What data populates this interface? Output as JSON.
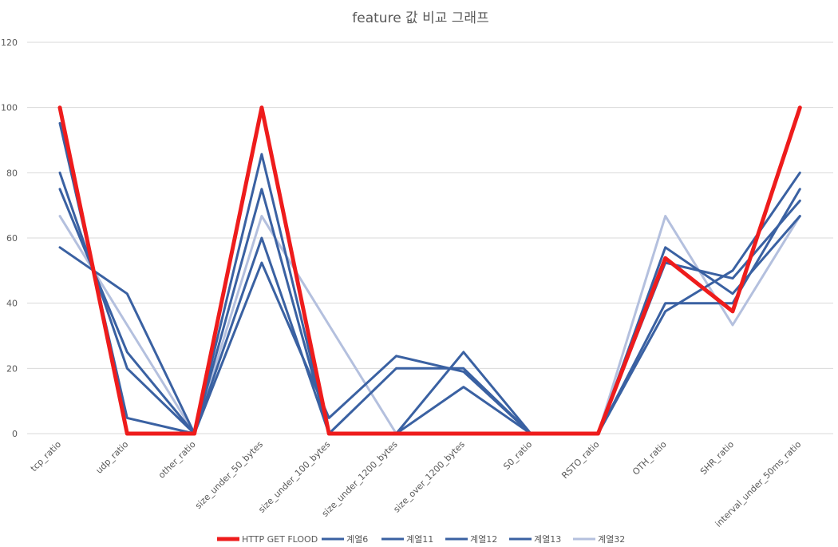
{
  "chart_data": {
    "type": "line",
    "title": "feature 값 비교 그래프",
    "xlabel": "",
    "ylabel": "",
    "ylim": [
      0,
      120
    ],
    "yticks": [
      "0",
      "20",
      "40",
      "60",
      "80",
      "100",
      "120"
    ],
    "grid": true,
    "legend_position": "bottom",
    "categories": [
      "tcp_ratio",
      "udp_ratio",
      "other_ratio",
      "size_under_50_bytes",
      "size_under_100_bytes",
      "size_under_1200_bytes",
      "size_over_1200_bytes",
      "S0_ratio",
      "RSTO_ratio",
      "OTH_ratio",
      "SHR_ratio",
      "interval_under_50ms_ratio"
    ],
    "series": [
      {
        "name": "계열32",
        "color": "#b4c0de",
        "values": [
          66.7,
          33.3,
          0,
          66.7,
          33.3,
          0,
          0,
          0,
          0,
          66.7,
          33.3,
          66.7
        ]
      },
      {
        "name": "계열13",
        "color": "#3a61a2",
        "values": [
          95.2,
          4.8,
          0,
          52.4,
          4.8,
          23.8,
          19,
          0,
          0,
          52.4,
          47.6,
          71.4
        ]
      },
      {
        "name": "계열12",
        "color": "#3a61a2",
        "values": [
          75,
          25,
          0,
          75,
          0,
          0,
          25,
          0,
          0,
          40,
          40,
          75
        ]
      },
      {
        "name": "계열11",
        "color": "#3a61a2",
        "values": [
          57.1,
          42.9,
          0,
          60,
          0,
          20,
          20,
          0,
          0,
          57.1,
          42.9,
          66.7
        ]
      },
      {
        "name": "계열6",
        "color": "#3a61a2",
        "values": [
          80,
          20,
          0,
          85.7,
          0,
          0,
          14.3,
          0,
          0,
          37.5,
          50,
          80
        ]
      },
      {
        "name": "HTTP GET FLOOD",
        "color": "#ee1c1c",
        "values": [
          100,
          0,
          0,
          100,
          0,
          0,
          0,
          0,
          0,
          53.8,
          37.5,
          100
        ]
      }
    ],
    "legend_order": [
      "HTTP GET FLOOD",
      "계열6",
      "계열11",
      "계열12",
      "계열13",
      "계열32"
    ]
  }
}
